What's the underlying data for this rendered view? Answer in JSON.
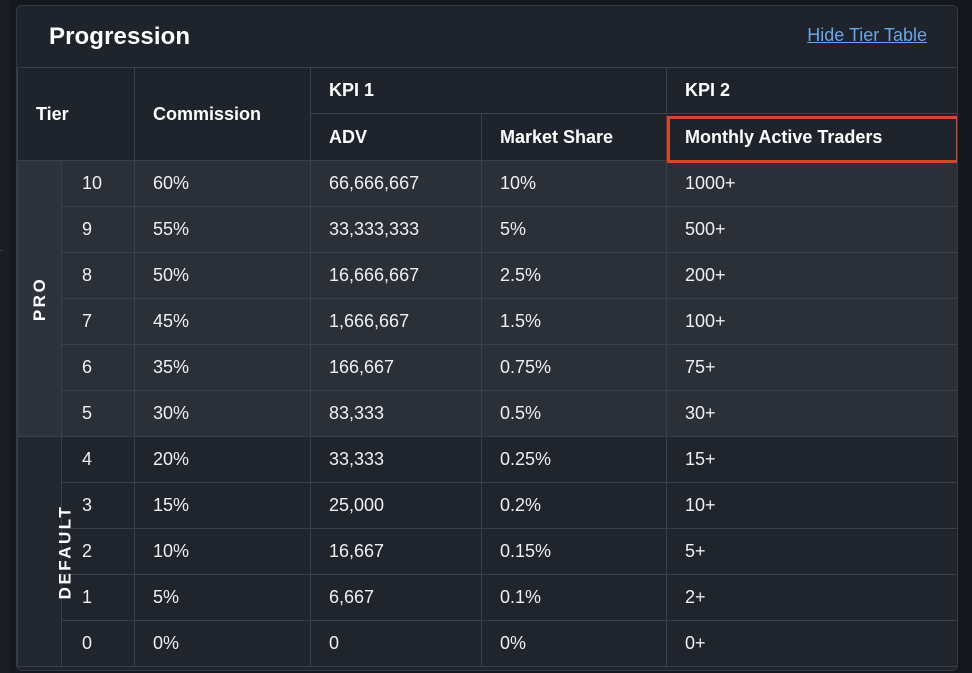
{
  "panel": {
    "title": "Progression",
    "hide_link": "Hide Tier Table"
  },
  "table": {
    "headers": {
      "tier": "Tier",
      "commission": "Commission",
      "kpi1": "KPI 1",
      "kpi2": "KPI 2",
      "adv": "ADV",
      "market_share": "Market Share",
      "monthly_active_traders": "Monthly Active Traders"
    },
    "groups": {
      "pro": "PRO",
      "default": "DEFAULT"
    },
    "rows": [
      {
        "tier": "10",
        "commission": "60%",
        "adv": "66,666,667",
        "market_share": "10%",
        "mat": "1000+"
      },
      {
        "tier": "9",
        "commission": "55%",
        "adv": "33,333,333",
        "market_share": "5%",
        "mat": "500+"
      },
      {
        "tier": "8",
        "commission": "50%",
        "adv": "16,666,667",
        "market_share": "2.5%",
        "mat": "200+"
      },
      {
        "tier": "7",
        "commission": "45%",
        "adv": "1,666,667",
        "market_share": "1.5%",
        "mat": "100+"
      },
      {
        "tier": "6",
        "commission": "35%",
        "adv": "166,667",
        "market_share": "0.75%",
        "mat": "75+"
      },
      {
        "tier": "5",
        "commission": "30%",
        "adv": "83,333",
        "market_share": "0.5%",
        "mat": "30+"
      },
      {
        "tier": "4",
        "commission": "20%",
        "adv": "33,333",
        "market_share": "0.25%",
        "mat": "15+"
      },
      {
        "tier": "3",
        "commission": "15%",
        "adv": "25,000",
        "market_share": "0.2%",
        "mat": "10+"
      },
      {
        "tier": "2",
        "commission": "10%",
        "adv": "16,667",
        "market_share": "0.15%",
        "mat": "5+"
      },
      {
        "tier": "1",
        "commission": "5%",
        "adv": "6,667",
        "market_share": "0.1%",
        "mat": "2+"
      },
      {
        "tier": "0",
        "commission": "0%",
        "adv": "0",
        "market_share": "0%",
        "mat": "0+"
      }
    ]
  },
  "colors": {
    "highlight": "#d9472b",
    "link": "#6aa6e8"
  }
}
